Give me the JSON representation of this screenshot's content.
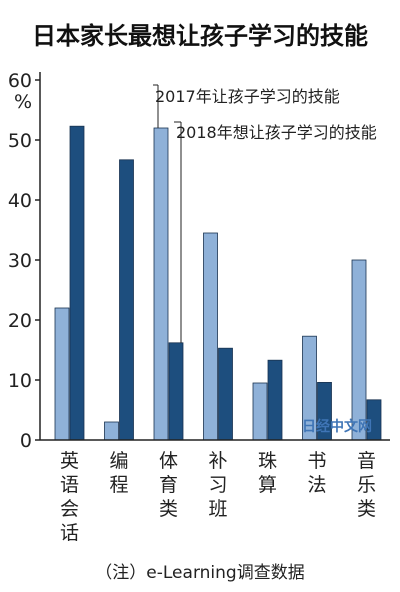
{
  "chart_data": {
    "type": "bar",
    "title": "日本家长最想让孩子学习的技能",
    "y_unit": "%",
    "ylim": [
      0,
      60
    ],
    "y_ticks": [
      "0",
      "10",
      "20",
      "30",
      "40",
      "50",
      "60"
    ],
    "categories": [
      "英语会话",
      "编程",
      "体育类",
      "补习班",
      "珠算",
      "书法",
      "音乐类"
    ],
    "series": [
      {
        "name": "2017年让孩子学习的技能",
        "color": "#8fb1d8",
        "values": [
          22,
          3,
          52,
          34.5,
          9.5,
          17.3,
          30
        ]
      },
      {
        "name": "2018年想让孩子学习的技能",
        "color": "#1d4e7e",
        "values": [
          52.3,
          46.7,
          16.2,
          15.3,
          13.3,
          9.6,
          6.7
        ]
      }
    ],
    "legend_placement": "top-center",
    "grid": false,
    "note": "（注）e-Learning调查数据",
    "watermark": "日经中文网"
  }
}
